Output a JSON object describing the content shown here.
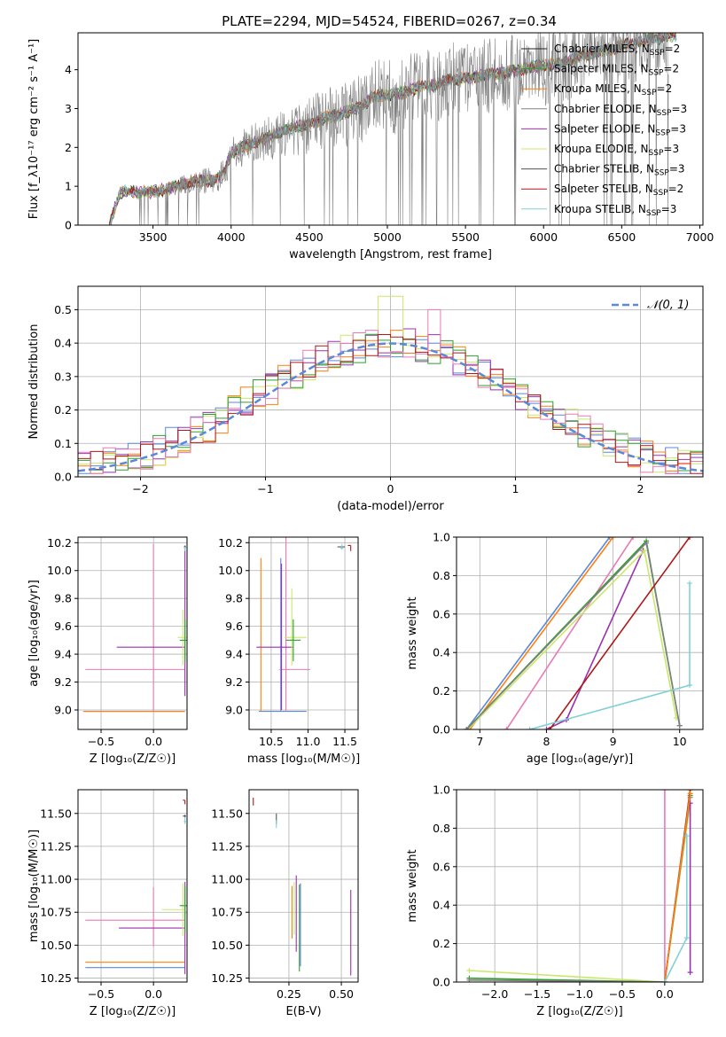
{
  "figure": {
    "suptitle": "PLATE=2294, MJD=54524, FIBERID=0267, z=0.34"
  },
  "chart_data": [
    {
      "type": "line",
      "id": "spectrum",
      "xlabel": "wavelength [Angstrom, rest frame]",
      "ylabel": "Flux [f_λ10⁻¹⁷ erg cm⁻² s⁻¹ A⁻¹]",
      "xlim": [
        3020,
        7020
      ],
      "ylim": [
        0,
        4.95
      ],
      "xticks": [
        3500,
        4000,
        4500,
        5000,
        5500,
        6000,
        6500,
        7000
      ],
      "yticks": [
        0,
        1,
        2,
        3,
        4
      ],
      "grid": false,
      "legend": "top-right",
      "data_color": "#808080",
      "continuum_x": [
        3220,
        3290,
        3400,
        3500,
        3600,
        3700,
        3800,
        3900,
        3950,
        4000,
        4100,
        4200,
        4300,
        4400,
        4500,
        4600,
        4700,
        4800,
        4850,
        4900,
        5000,
        5100,
        5200,
        5300,
        5400,
        5500,
        5600,
        5700,
        5800,
        5900,
        6000,
        6100,
        6200,
        6300,
        6400,
        6500,
        6600,
        6700,
        6800
      ],
      "continuum_y": [
        0.0,
        0.85,
        0.85,
        0.85,
        0.95,
        1.05,
        1.15,
        1.15,
        1.3,
        1.85,
        2.05,
        2.2,
        2.35,
        2.5,
        2.6,
        2.75,
        2.85,
        3.0,
        3.1,
        3.3,
        3.35,
        3.4,
        3.55,
        3.6,
        3.75,
        3.75,
        3.85,
        3.9,
        3.95,
        4.05,
        4.1,
        4.15,
        4.3,
        4.4,
        4.5,
        4.6,
        4.7,
        4.8,
        4.85
      ],
      "legend_entries": [
        {
          "label": "Chabrier MILES, N",
          "sub": "SSP",
          "suffix": "=2",
          "color": "#1f1f1f"
        },
        {
          "label": "Salpeter MILES, N",
          "sub": "SSP",
          "suffix": "=2",
          "color": "#2ca02c"
        },
        {
          "label": "Kroupa MILES, N",
          "sub": "SSP",
          "suffix": "=2",
          "color": "#ff7f0e"
        },
        {
          "label": "Chabrier ELODIE, N",
          "sub": "SSP",
          "suffix": "=3",
          "color": "#808080"
        },
        {
          "label": "Salpeter ELODIE, N",
          "sub": "SSP",
          "suffix": "=3",
          "color": "#9b30b0"
        },
        {
          "label": "Kroupa ELODIE, N",
          "sub": "SSP",
          "suffix": "=3",
          "color": "#c9e86a"
        },
        {
          "label": "Chabrier STELIB, N",
          "sub": "SSP",
          "suffix": "=3",
          "color": "#505050"
        },
        {
          "label": "Salpeter STELIB, N",
          "sub": "SSP",
          "suffix": "=2",
          "color": "#b01818"
        },
        {
          "label": "Kroupa STELIB, N",
          "sub": "SSP",
          "suffix": "=3",
          "color": "#80d0d8"
        }
      ]
    },
    {
      "type": "step",
      "id": "residuals",
      "xlabel": "(data-model)/error",
      "ylabel": "Normed distribution",
      "xlim": [
        -2.5,
        2.5
      ],
      "ylim": [
        0,
        0.57
      ],
      "xticks": [
        -2,
        -1,
        0,
        1,
        2
      ],
      "yticks": [
        0.0,
        0.1,
        0.2,
        0.3,
        0.4,
        0.5
      ],
      "grid": true,
      "legend": "top-right",
      "gaussian_label": "𝒩(0, 1)",
      "gaussian_color": "#5b88d8",
      "step_colors": [
        "#5b88d8",
        "#ff7f0e",
        "#9b30b0",
        "#c9e86a",
        "#2ca02c",
        "#e87ab5",
        "#b01818"
      ],
      "bin_width": 0.1,
      "bin_start": -2.5
    },
    {
      "type": "errorbar",
      "id": "age-vs-Z",
      "xlabel": "Z [log₁₀(Z/Z☉)]",
      "ylabel": "age  [log₁₀(age/yr)]",
      "xlim": [
        -0.72,
        0.32
      ],
      "ylim": [
        8.86,
        10.24
      ],
      "xticks": [
        -0.5,
        0.0
      ],
      "xticklabels": [
        "−0.5",
        "0.0"
      ],
      "yticks": [
        9.0,
        9.2,
        9.4,
        9.6,
        9.8,
        10.0,
        10.2
      ],
      "grid": true,
      "points": [
        {
          "x": -0.05,
          "xerr": [
            0.62,
            0.35
          ],
          "y": 8.99,
          "yerr": [
            0.0,
            0.0
          ],
          "color": "#5b88d8"
        },
        {
          "x": -0.05,
          "xerr": [
            0.62,
            0.35
          ],
          "y": 8.99,
          "yerr": [
            0.0,
            0.0
          ],
          "color": "#ff7f0e"
        },
        {
          "x": -0.05,
          "xerr": [
            0.6,
            0.35
          ],
          "y": 9.29,
          "yerr": [
            0.0,
            0.0
          ],
          "color": "#e87ab5"
        },
        {
          "x": 0.0,
          "xerr": [
            0.0,
            0.0
          ],
          "y": 9.29,
          "yerr": [
            0.3,
            0.9
          ],
          "color": "#e87ab5"
        },
        {
          "x": 0.0,
          "xerr": [
            0.35,
            0.3
          ],
          "y": 9.45,
          "yerr": [
            0.0,
            0.0
          ],
          "color": "#9b30b0"
        },
        {
          "x": 0.3,
          "xerr": [
            0.0,
            0.0
          ],
          "y": 9.45,
          "yerr": [
            0.35,
            0.7
          ],
          "color": "#9b30b0"
        },
        {
          "x": 0.28,
          "xerr": [
            0.05,
            0.05
          ],
          "y": 9.52,
          "yerr": [
            0.2,
            0.2
          ],
          "color": "#c9e86a"
        },
        {
          "x": 0.3,
          "xerr": [
            0.05,
            0.02
          ],
          "y": 9.5,
          "yerr": [
            0.15,
            0.15
          ],
          "color": "#2ca02c"
        },
        {
          "x": 0.3,
          "xerr": [
            0.01,
            0.01
          ],
          "y": 10.17,
          "yerr": [
            0.01,
            0.01
          ],
          "color": "#555555"
        },
        {
          "x": 0.3,
          "xerr": [
            0.01,
            0.01
          ],
          "y": 10.16,
          "yerr": [
            0.02,
            0.01
          ],
          "color": "#80d0d8"
        }
      ]
    },
    {
      "type": "errorbar",
      "id": "age-vs-mass",
      "xlabel": "mass [log₁₀(M/M☉)]",
      "ylabel": "",
      "xlim": [
        10.2,
        11.68
      ],
      "ylim": [
        8.86,
        10.24
      ],
      "xticks": [
        10.5,
        11.0,
        11.5
      ],
      "xticklabels": [
        "10.5",
        "11.0",
        "11.5"
      ],
      "yticks": [
        9.0,
        9.2,
        9.4,
        9.6,
        9.8,
        10.0,
        10.2
      ],
      "grid": true,
      "points": [
        {
          "x": 10.63,
          "xerr": [
            0.3,
            0.35
          ],
          "y": 8.99,
          "yerr": [
            0.0,
            1.1
          ],
          "color": "#5b88d8"
        },
        {
          "x": 10.36,
          "xerr": [
            0.0,
            0.0
          ],
          "y": 8.99,
          "yerr": [
            0.0,
            1.1
          ],
          "color": "#ff7f0e"
        },
        {
          "x": 10.83,
          "xerr": [
            0.22,
            0.2
          ],
          "y": 9.29,
          "yerr": [
            0.0,
            0.0
          ],
          "color": "#e87ab5"
        },
        {
          "x": 10.7,
          "xerr": [
            0.0,
            0.0
          ],
          "y": 9.29,
          "yerr": [
            0.3,
            1.0
          ],
          "color": "#e87ab5"
        },
        {
          "x": 10.6,
          "xerr": [
            0.3,
            0.2
          ],
          "y": 9.45,
          "yerr": [
            0.0,
            0.0
          ],
          "color": "#9b30b0"
        },
        {
          "x": 10.64,
          "xerr": [
            0.0,
            0.0
          ],
          "y": 9.45,
          "yerr": [
            0.45,
            0.6
          ],
          "color": "#9b30b0"
        },
        {
          "x": 10.78,
          "xerr": [
            0.1,
            0.2
          ],
          "y": 9.52,
          "yerr": [
            0.2,
            0.35
          ],
          "color": "#c9e86a"
        },
        {
          "x": 10.8,
          "xerr": [
            0.1,
            0.1
          ],
          "y": 9.5,
          "yerr": [
            0.15,
            0.15
          ],
          "color": "#2ca02c"
        },
        {
          "x": 11.48,
          "xerr": [
            0.08,
            0.02
          ],
          "y": 10.17,
          "yerr": [
            0.0,
            0.0
          ],
          "color": "#555555"
        },
        {
          "x": 11.46,
          "xerr": [
            0.02,
            0.02
          ],
          "y": 10.16,
          "yerr": [
            0.01,
            0.03
          ],
          "color": "#80d0d8"
        },
        {
          "x": 11.58,
          "xerr": [
            0.04,
            0.0
          ],
          "y": 10.18,
          "yerr": [
            0.04,
            0.0
          ],
          "color": "#b01818"
        }
      ]
    },
    {
      "type": "line",
      "id": "massweight-vs-age",
      "xlabel": "age  [log₁₀(age/yr)]",
      "ylabel": "mass weight",
      "xlim": [
        6.65,
        10.35
      ],
      "ylim": [
        0,
        1
      ],
      "xticks": [
        7,
        8,
        9,
        10
      ],
      "yticks": [
        0.0,
        0.2,
        0.4,
        0.6,
        0.8,
        1.0
      ],
      "grid": true,
      "series": [
        {
          "color": "#ff7f0e",
          "x": [
            6.85,
            9.0
          ],
          "y": [
            0.0,
            1.0
          ]
        },
        {
          "color": "#5b88d8",
          "x": [
            6.8,
            8.95
          ],
          "y": [
            0.0,
            1.0
          ]
        },
        {
          "color": "#e87ab5",
          "x": [
            7.4,
            9.3
          ],
          "y": [
            0.0,
            1.0
          ]
        },
        {
          "color": "#9b30b0",
          "x": [
            8.0,
            8.3,
            9.45
          ],
          "y": [
            0.0,
            0.05,
            0.93
          ]
        },
        {
          "color": "#c9e86a",
          "x": [
            6.82,
            9.47,
            9.95
          ],
          "y": [
            0.0,
            0.93,
            0.06
          ]
        },
        {
          "color": "#2ca02c",
          "x": [
            6.8,
            9.5,
            10.0
          ],
          "y": [
            0.0,
            0.98,
            0.02
          ]
        },
        {
          "color": "#808080",
          "x": [
            6.8,
            9.5,
            10.0
          ],
          "y": [
            0.0,
            0.97,
            0.02
          ]
        },
        {
          "color": "#b01818",
          "x": [
            8.05,
            10.15
          ],
          "y": [
            0.0,
            1.0
          ]
        },
        {
          "color": "#80d0d8",
          "x": [
            7.75,
            10.15,
            10.15
          ],
          "y": [
            0.0,
            0.23,
            0.76
          ]
        }
      ]
    },
    {
      "type": "errorbar",
      "id": "mass-vs-Z",
      "xlabel": "Z [log₁₀(Z/Z☉)]",
      "ylabel": "mass [log₁₀(M/M☉)]",
      "xlim": [
        -0.72,
        0.32
      ],
      "ylim": [
        10.22,
        11.68
      ],
      "xticks": [
        -0.5,
        0.0
      ],
      "xticklabels": [
        "−0.5",
        "0.0"
      ],
      "yticks": [
        10.25,
        10.5,
        10.75,
        11.0,
        11.25,
        11.5
      ],
      "grid": true,
      "points": [
        {
          "x": -0.15,
          "xerr": [
            0.5,
            0.45
          ],
          "y": 10.33,
          "yerr": [
            0.0,
            0.0
          ],
          "color": "#5b88d8"
        },
        {
          "x": -0.15,
          "xerr": [
            0.5,
            0.45
          ],
          "y": 10.37,
          "yerr": [
            0.0,
            0.0
          ],
          "color": "#ff7f0e"
        },
        {
          "x": -0.15,
          "xerr": [
            0.5,
            0.45
          ],
          "y": 10.69,
          "yerr": [
            0.0,
            0.0
          ],
          "color": "#e87ab5"
        },
        {
          "x": 0.0,
          "xerr": [
            0.0,
            0.0
          ],
          "y": 10.69,
          "yerr": [
            0.2,
            0.25
          ],
          "color": "#e87ab5"
        },
        {
          "x": 0.0,
          "xerr": [
            0.33,
            0.3
          ],
          "y": 10.63,
          "yerr": [
            0.0,
            0.0
          ],
          "color": "#9b30b0"
        },
        {
          "x": 0.3,
          "xerr": [
            0.0,
            0.0
          ],
          "y": 10.63,
          "yerr": [
            0.35,
            0.35
          ],
          "color": "#9b30b0"
        },
        {
          "x": 0.28,
          "xerr": [
            0.2,
            0.02
          ],
          "y": 10.77,
          "yerr": [
            0.2,
            0.2
          ],
          "color": "#c9e86a"
        },
        {
          "x": 0.3,
          "xerr": [
            0.05,
            0.02
          ],
          "y": 10.8,
          "yerr": [
            0.2,
            0.15
          ],
          "color": "#2ca02c"
        },
        {
          "x": 0.3,
          "xerr": [
            0.02,
            0.01
          ],
          "y": 11.48,
          "yerr": [
            0.01,
            0.01
          ],
          "color": "#555555"
        },
        {
          "x": 0.3,
          "xerr": [
            0.01,
            0.01
          ],
          "y": 11.44,
          "yerr": [
            0.02,
            0.03
          ],
          "color": "#80d0d8"
        },
        {
          "x": 0.3,
          "xerr": [
            0.02,
            0.0
          ],
          "y": 11.6,
          "yerr": [
            0.03,
            0.0
          ],
          "color": "#b01818"
        }
      ]
    },
    {
      "type": "errorbar",
      "id": "mass-vs-EBV",
      "xlabel": "E(B-V)",
      "ylabel": "",
      "xlim": [
        0.06,
        0.58
      ],
      "ylim": [
        10.22,
        11.68
      ],
      "xticks": [
        0.25,
        0.5
      ],
      "xticklabels": [
        "0.25",
        "0.50"
      ],
      "yticks": [
        10.25,
        10.5,
        10.75,
        11.0,
        11.25,
        11.5
      ],
      "grid": true,
      "points": [
        {
          "x": 0.08,
          "xerr": [
            0.0,
            0.0
          ],
          "y": 11.59,
          "yerr": [
            0.03,
            0.03
          ],
          "color": "#b01818"
        },
        {
          "x": 0.19,
          "xerr": [
            0.0,
            0.0
          ],
          "y": 11.46,
          "yerr": [
            0.04,
            0.04
          ],
          "color": "#555555"
        },
        {
          "x": 0.19,
          "xerr": [
            0.0,
            0.0
          ],
          "y": 11.42,
          "yerr": [
            0.03,
            0.03
          ],
          "color": "#80d0d8"
        },
        {
          "x": 0.265,
          "xerr": [
            0.0,
            0.0
          ],
          "y": 10.75,
          "yerr": [
            0.2,
            0.2
          ],
          "color": "#ff7f0e"
        },
        {
          "x": 0.275,
          "xerr": [
            0.0,
            0.0
          ],
          "y": 10.78,
          "yerr": [
            0.2,
            0.2
          ],
          "color": "#c9e86a"
        },
        {
          "x": 0.285,
          "xerr": [
            0.0,
            0.0
          ],
          "y": 10.75,
          "yerr": [
            0.3,
            0.28
          ],
          "color": "#9b30b0"
        },
        {
          "x": 0.3,
          "xerr": [
            0.0,
            0.0
          ],
          "y": 10.6,
          "yerr": [
            0.3,
            0.36
          ],
          "color": "#2ca02c"
        },
        {
          "x": 0.305,
          "xerr": [
            0.0,
            0.0
          ],
          "y": 10.64,
          "yerr": [
            0.3,
            0.33
          ],
          "color": "#5b88d8"
        },
        {
          "x": 0.545,
          "xerr": [
            0.0,
            0.0
          ],
          "y": 10.6,
          "yerr": [
            0.33,
            0.32
          ],
          "color": "#9b30b0"
        }
      ]
    },
    {
      "type": "line",
      "id": "massweight-vs-Z",
      "xlabel": "Z [log₁₀(Z/Z☉)]",
      "ylabel": "mass weight",
      "xlim": [
        -2.45,
        0.45
      ],
      "ylim": [
        0,
        1
      ],
      "xticks": [
        -2.0,
        -1.5,
        -1.0,
        -0.5,
        0.0
      ],
      "xticklabels": [
        "−2.0",
        "−1.5",
        "−1.0",
        "−0.5",
        "0.0"
      ],
      "yticks": [
        0.0,
        0.2,
        0.4,
        0.6,
        0.8,
        1.0
      ],
      "grid": true,
      "series": [
        {
          "color": "#e87ab5",
          "x": [
            0.0,
            0.0
          ],
          "y": [
            0.0,
            1.0
          ]
        },
        {
          "color": "#c9e86a",
          "x": [
            -2.3,
            0.0,
            0.3
          ],
          "y": [
            0.06,
            0.0,
            0.93
          ]
        },
        {
          "color": "#2ca02c",
          "x": [
            -2.3,
            0.0,
            0.3
          ],
          "y": [
            0.02,
            0.0,
            0.97
          ]
        },
        {
          "color": "#808080",
          "x": [
            -2.3,
            0.0,
            0.3
          ],
          "y": [
            0.01,
            0.0,
            0.96
          ]
        },
        {
          "color": "#9b30b0",
          "x": [
            0.3,
            0.3
          ],
          "y": [
            0.05,
            0.93
          ]
        },
        {
          "color": "#b01818",
          "x": [
            0.0,
            0.3
          ],
          "y": [
            0.0,
            1.0
          ]
        },
        {
          "color": "#ff7f0e",
          "x": [
            0.0,
            0.3
          ],
          "y": [
            0.0,
            0.98
          ]
        },
        {
          "color": "#80d0d8",
          "x": [
            0.0,
            0.26,
            0.26
          ],
          "y": [
            0.0,
            0.23,
            0.76
          ]
        }
      ]
    }
  ]
}
